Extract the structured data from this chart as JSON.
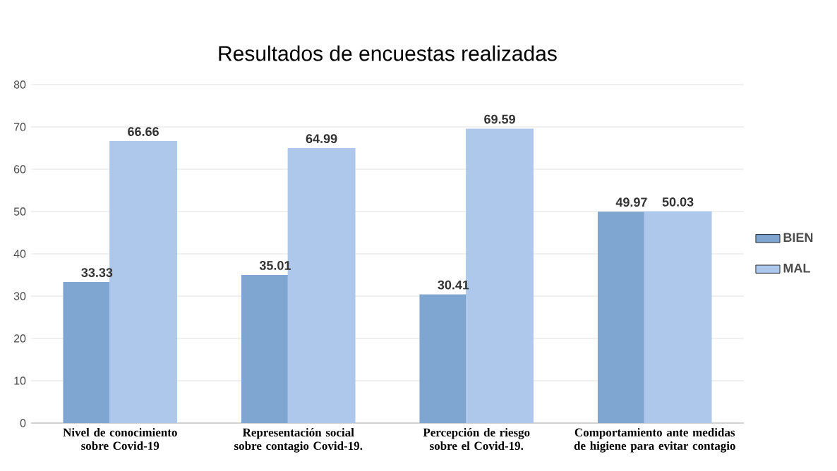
{
  "chart_data": {
    "type": "bar",
    "title": "Resultados de encuestas realizadas",
    "categories": [
      "Nivel de conocimiento sobre Covid-19",
      "Representación social sobre contagio Covid-19.",
      "Percepción de riesgo sobre el Covid-19.",
      "Comportamiento ante medidas de higiene para evitar contagio"
    ],
    "series": [
      {
        "name": "BIEN",
        "color": "#7fa6d1",
        "values": [
          33.33,
          35.01,
          30.41,
          49.97
        ]
      },
      {
        "name": "MAL",
        "color": "#adc8ea",
        "values": [
          66.66,
          64.99,
          69.59,
          50.03
        ]
      }
    ],
    "ylim": [
      0,
      80
    ],
    "yticks": [
      0,
      10,
      20,
      30,
      40,
      50,
      60,
      70,
      80
    ],
    "grid": "y",
    "legend": "right",
    "data_labels": true
  }
}
